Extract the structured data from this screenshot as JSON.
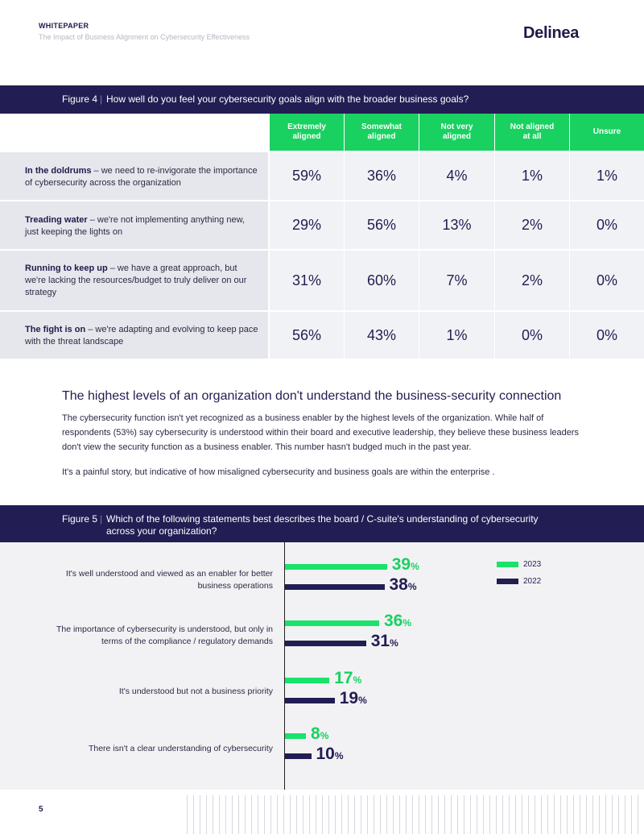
{
  "header": {
    "kicker": "WHITEPAPER",
    "subtitle": "The Impact of Business Alignment on Cybersecurity Effectiveness",
    "logo": "Delinea"
  },
  "figure4": {
    "number": "Figure 4",
    "separator": "|",
    "question": "How well do you feel your cybersecurity goals align with the broader business goals?",
    "columns": [
      "Extremely aligned",
      "Somewhat aligned",
      "Not very aligned",
      "Not aligned at all",
      "Unsure"
    ],
    "rows": [
      {
        "bold": "In the doldrums",
        "rest": " – we need to re-invigorate the importance of cybersecurity across the organization",
        "values": [
          "59%",
          "36%",
          "4%",
          "1%",
          "1%"
        ]
      },
      {
        "bold": "Treading water",
        "rest": " – we're not implementing anything new, just keeping the lights on",
        "values": [
          "29%",
          "56%",
          "13%",
          "2%",
          "0%"
        ]
      },
      {
        "bold": "Running to keep up",
        "rest": " – we have a great approach, but we're lacking the resources/budget to truly deliver on our strategy",
        "values": [
          "31%",
          "60%",
          "7%",
          "2%",
          "0%"
        ]
      },
      {
        "bold": "The fight is on",
        "rest": " – we're adapting and evolving to keep pace with the threat landscape",
        "values": [
          "56%",
          "43%",
          "1%",
          "0%",
          "0%"
        ]
      }
    ]
  },
  "section": {
    "title": "The highest levels of an organization don't understand the business-security connection",
    "para1": "The cybersecurity function isn't yet recognized as a business enabler by the highest levels of the organization. While half of respondents (53%) say cybersecurity is understood within their board and executive leadership, they believe these business leaders don't view the security function as a business enabler. This number hasn't budged much in the past year.",
    "para2": "It's a painful story, but indicative of how misaligned cybersecurity and business goals are within the enterprise ."
  },
  "figure5": {
    "number": "Figure 5",
    "separator": "|",
    "question_line1": "Which of the following statements best describes the board / C-suite's understanding of cybersecurity",
    "question_line2": "across your organization?"
  },
  "chart_data": {
    "type": "bar",
    "orientation": "horizontal",
    "categories": [
      "It's well understood and viewed as an enabler for better business operations",
      "The importance of cybersecurity is understood, but only in terms of the compliance / regulatory demands",
      "It's understood but not a business priority",
      "There isn't a clear understanding of cybersecurity"
    ],
    "series": [
      {
        "name": "2023",
        "color": "#19e36a",
        "values": [
          39,
          36,
          17,
          8
        ]
      },
      {
        "name": "2022",
        "color": "#221d52",
        "values": [
          38,
          31,
          19,
          10
        ]
      }
    ],
    "unit": "%",
    "legend_position": "top-right"
  },
  "footer": {
    "page": "5"
  }
}
